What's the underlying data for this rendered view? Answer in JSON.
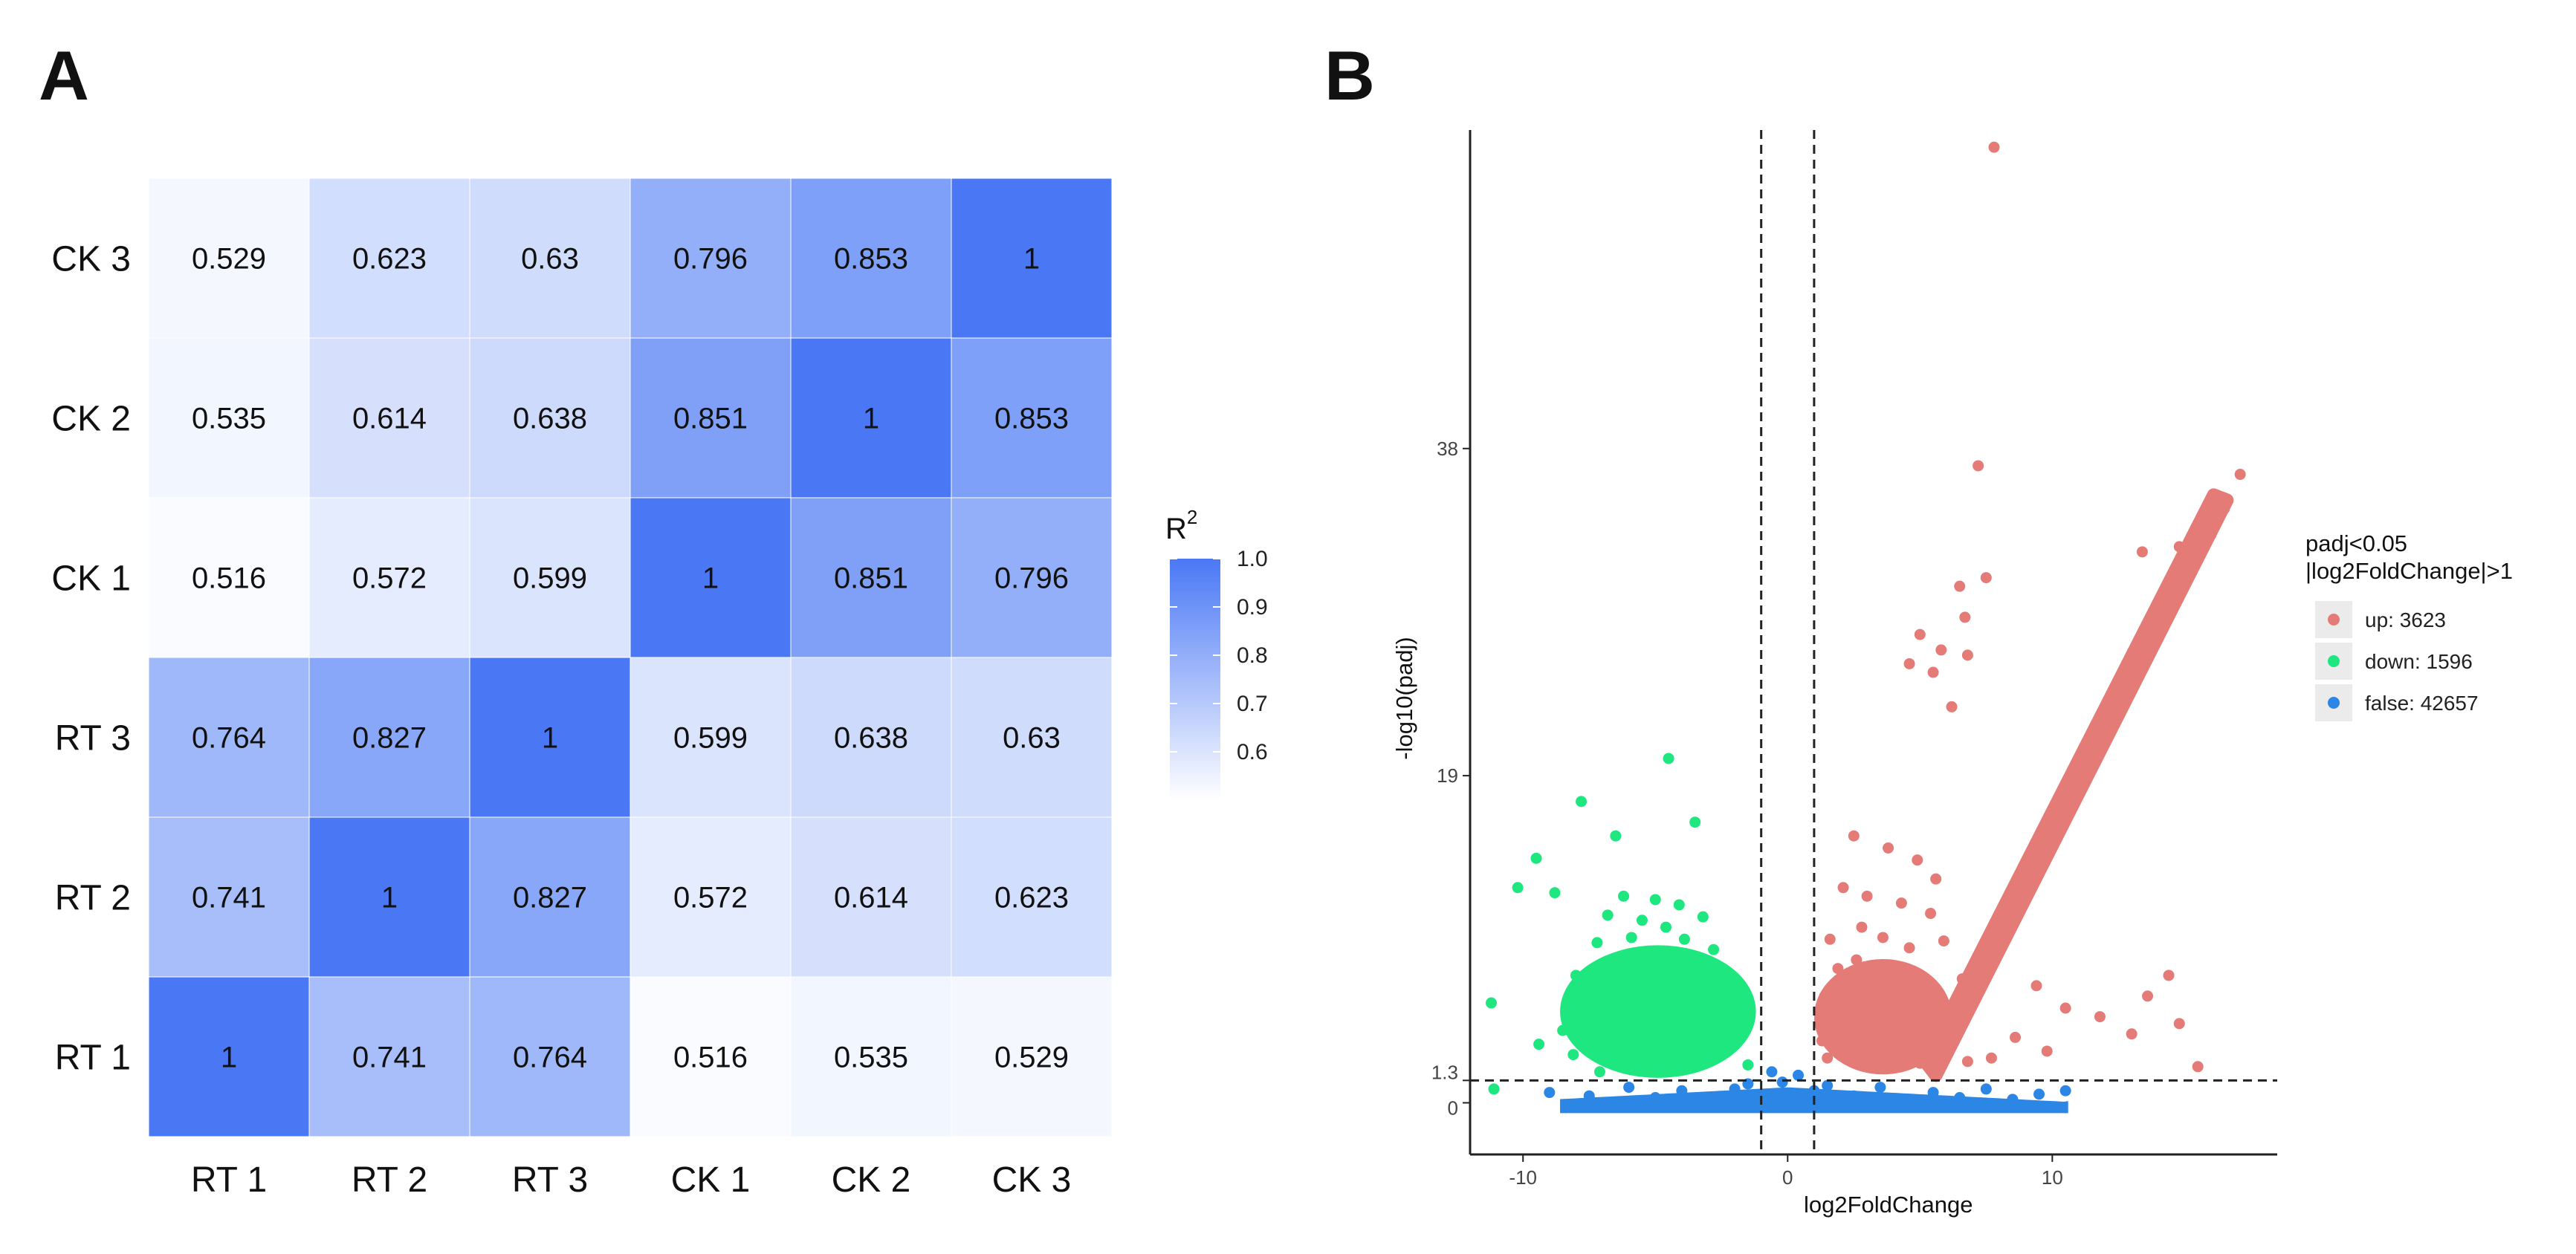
{
  "panels": {
    "a_label": "A",
    "b_label": "B"
  },
  "colors": {
    "heat_low": "#ffffff",
    "heat_high": "#4a78f5",
    "up": "#e57b77",
    "down": "#1ee77f",
    "false": "#2c86e5",
    "guide": "#222222"
  },
  "chart_data": [
    {
      "type": "heatmap",
      "title": "",
      "x_labels": [
        "RT 1",
        "RT 2",
        "RT 3",
        "CK 1",
        "CK 2",
        "CK 3"
      ],
      "y_labels_bottom_to_top": [
        "RT 1",
        "RT 2",
        "RT 3",
        "CK 1",
        "CK 2",
        "CK 3"
      ],
      "matrix": [
        [
          1,
          0.741,
          0.764,
          0.516,
          0.535,
          0.529
        ],
        [
          0.741,
          1,
          0.827,
          0.572,
          0.614,
          0.623
        ],
        [
          0.764,
          0.827,
          1,
          0.599,
          0.638,
          0.63
        ],
        [
          0.516,
          0.572,
          0.599,
          1,
          0.851,
          0.796
        ],
        [
          0.535,
          0.614,
          0.638,
          0.851,
          1,
          0.853
        ],
        [
          0.529,
          0.623,
          0.63,
          0.796,
          0.853,
          1
        ]
      ],
      "cell_labels": [
        [
          "1",
          "0.741",
          "0.764",
          "0.516",
          "0.535",
          "0.529"
        ],
        [
          "0.741",
          "1",
          "0.827",
          "0.572",
          "0.614",
          "0.623"
        ],
        [
          "0.764",
          "0.827",
          "1",
          "0.599",
          "0.638",
          "0.63"
        ],
        [
          "0.516",
          "0.572",
          "0.599",
          "1",
          "0.851",
          "0.796"
        ],
        [
          "0.535",
          "0.614",
          "0.638",
          "0.851",
          "1",
          "0.853"
        ],
        [
          "0.529",
          "0.623",
          "0.63",
          "0.796",
          "0.853",
          "1"
        ]
      ],
      "legend": {
        "title_base": "R",
        "title_sup": "2",
        "range": [
          0.5,
          1.0
        ],
        "ticks": [
          1.0,
          0.9,
          0.8,
          0.7,
          0.6
        ],
        "tick_labels": [
          "1.0",
          "0.9",
          "0.8",
          "0.7",
          "0.6"
        ],
        "position": "right"
      }
    },
    {
      "type": "scatter",
      "title": "",
      "xlabel": "log2FoldChange",
      "ylabel": "-log10(padj)",
      "xlim": [
        -12,
        18.5
      ],
      "ylim": [
        -3,
        56.5
      ],
      "x_ticks": [
        -10,
        0,
        10
      ],
      "x_tick_labels": [
        "-10",
        "0",
        "10"
      ],
      "y_ticks": [
        0,
        1.3,
        19,
        38
      ],
      "y_tick_labels": [
        "0",
        "1.3",
        "19",
        "38"
      ],
      "threshold_lines": {
        "vertical": [
          -1,
          1
        ],
        "horizontal": [
          1.3
        ]
      },
      "legend": {
        "title_lines": [
          "padj<0.05",
          "|log2FoldChange|>1"
        ],
        "position": "right",
        "entries": [
          {
            "key": "up",
            "label": "up: 3623"
          },
          {
            "key": "down",
            "label": "down: 1596"
          },
          {
            "key": "false",
            "label": "false: 42657"
          }
        ]
      },
      "series": [
        {
          "name": "up",
          "points": [
            [
              7.8,
              55.5
            ],
            [
              17.1,
              36.5
            ],
            [
              16.5,
              34.5
            ],
            [
              16.0,
              33.0
            ],
            [
              15.4,
              32.0
            ],
            [
              14.8,
              32.3
            ],
            [
              13.4,
              32.0
            ],
            [
              15.0,
              30.5
            ],
            [
              14.6,
              29.3
            ],
            [
              14.0,
              27.8
            ],
            [
              13.5,
              26.5
            ],
            [
              12.9,
              24.8
            ],
            [
              12.4,
              23.2
            ],
            [
              11.8,
              21.5
            ],
            [
              11.2,
              19.8
            ],
            [
              10.6,
              18.0
            ],
            [
              10.0,
              16.3
            ],
            [
              9.4,
              14.5
            ],
            [
              8.8,
              12.8
            ],
            [
              8.2,
              11.0
            ],
            [
              7.6,
              9.2
            ],
            [
              7.0,
              7.4
            ],
            [
              6.4,
              5.6
            ],
            [
              5.8,
              3.8
            ],
            [
              7.2,
              37.0
            ],
            [
              6.5,
              30.0
            ],
            [
              7.5,
              30.5
            ],
            [
              6.7,
              28.2
            ],
            [
              5.0,
              27.2
            ],
            [
              5.8,
              26.3
            ],
            [
              6.8,
              26.0
            ],
            [
              4.6,
              25.5
            ],
            [
              5.5,
              25.0
            ],
            [
              6.2,
              23.0
            ],
            [
              2.5,
              15.5
            ],
            [
              3.8,
              14.8
            ],
            [
              4.9,
              14.1
            ],
            [
              5.6,
              13.0
            ],
            [
              2.1,
              12.5
            ],
            [
              3.0,
              12.0
            ],
            [
              4.3,
              11.6
            ],
            [
              5.4,
              11.0
            ],
            [
              1.6,
              9.5
            ],
            [
              2.8,
              10.2
            ],
            [
              3.6,
              9.6
            ],
            [
              4.6,
              9.0
            ],
            [
              5.9,
              9.4
            ],
            [
              1.9,
              7.8
            ],
            [
              2.6,
              8.3
            ],
            [
              3.3,
              7.4
            ],
            [
              4.1,
              7.9
            ],
            [
              5.1,
              7.0
            ],
            [
              6.6,
              7.2
            ],
            [
              1.4,
              6.2
            ],
            [
              2.2,
              6.6
            ],
            [
              3.0,
              5.9
            ],
            [
              3.9,
              6.4
            ],
            [
              4.8,
              5.7
            ],
            [
              5.6,
              6.1
            ],
            [
              1.8,
              4.7
            ],
            [
              2.6,
              5.1
            ],
            [
              3.4,
              4.5
            ],
            [
              4.3,
              4.9
            ],
            [
              5.2,
              4.4
            ],
            [
              6.0,
              4.2
            ],
            [
              1.3,
              3.6
            ],
            [
              2.0,
              3.9
            ],
            [
              2.9,
              3.4
            ],
            [
              3.7,
              3.8
            ],
            [
              4.6,
              3.2
            ],
            [
              5.5,
              3.5
            ],
            [
              1.5,
              2.6
            ],
            [
              2.4,
              2.8
            ],
            [
              3.2,
              2.4
            ],
            [
              4.0,
              2.7
            ],
            [
              5.0,
              2.3
            ],
            [
              5.9,
              2.5
            ],
            [
              6.8,
              2.4
            ],
            [
              7.7,
              2.6
            ],
            [
              9.4,
              6.8
            ],
            [
              10.5,
              5.5
            ],
            [
              11.8,
              5.0
            ],
            [
              13.0,
              4.0
            ],
            [
              14.4,
              7.4
            ],
            [
              13.6,
              6.2
            ],
            [
              14.8,
              4.6
            ],
            [
              15.5,
              2.1
            ],
            [
              8.6,
              3.8
            ],
            [
              9.8,
              3.0
            ]
          ]
        },
        {
          "name": "down",
          "points": [
            [
              -4.5,
              20.0
            ],
            [
              -7.8,
              17.5
            ],
            [
              -3.5,
              16.3
            ],
            [
              -6.5,
              15.5
            ],
            [
              -9.5,
              14.2
            ],
            [
              -10.2,
              12.5
            ],
            [
              -8.8,
              12.2
            ],
            [
              -6.2,
              12.0
            ],
            [
              -5.0,
              11.8
            ],
            [
              -4.1,
              11.5
            ],
            [
              -6.8,
              10.9
            ],
            [
              -5.5,
              10.6
            ],
            [
              -3.2,
              10.8
            ],
            [
              -4.6,
              10.2
            ],
            [
              -5.9,
              9.6
            ],
            [
              -7.2,
              9.3
            ],
            [
              -3.9,
              9.5
            ],
            [
              -2.8,
              8.9
            ],
            [
              -5.2,
              8.6
            ],
            [
              -6.4,
              8.2
            ],
            [
              -4.3,
              8.0
            ],
            [
              -3.4,
              7.6
            ],
            [
              -8.0,
              7.4
            ],
            [
              -7.0,
              7.0
            ],
            [
              -5.6,
              7.1
            ],
            [
              -4.8,
              6.7
            ],
            [
              -2.6,
              6.9
            ],
            [
              -6.1,
              6.2
            ],
            [
              -3.8,
              6.0
            ],
            [
              -8.3,
              5.8
            ],
            [
              -7.4,
              5.5
            ],
            [
              -5.0,
              5.3
            ],
            [
              -2.2,
              5.6
            ],
            [
              -6.6,
              4.8
            ],
            [
              -4.2,
              4.7
            ],
            [
              -3.1,
              4.3
            ],
            [
              -8.5,
              4.2
            ],
            [
              -7.6,
              3.9
            ],
            [
              -5.4,
              3.6
            ],
            [
              -1.8,
              3.8
            ],
            [
              -6.9,
              3.2
            ],
            [
              -4.5,
              3.0
            ],
            [
              -2.9,
              2.9
            ],
            [
              -8.1,
              2.8
            ],
            [
              -6.0,
              2.5
            ],
            [
              -3.7,
              2.3
            ],
            [
              -1.5,
              2.2
            ],
            [
              -5.2,
              1.9
            ],
            [
              -7.1,
              1.8
            ],
            [
              -11.2,
              5.8
            ],
            [
              -9.4,
              3.4
            ],
            [
              -11.1,
              0.8
            ]
          ]
        },
        {
          "name": "false",
          "points": [
            [
              -9.0,
              0.6
            ],
            [
              -7.5,
              0.4
            ],
            [
              -6.0,
              0.9
            ],
            [
              -5.0,
              0.3
            ],
            [
              -4.0,
              0.7
            ],
            [
              -3.0,
              0.2
            ],
            [
              -2.0,
              0.8
            ],
            [
              -1.5,
              1.1
            ],
            [
              -1.0,
              0.5
            ],
            [
              -0.5,
              0.2
            ],
            [
              0.0,
              0.0
            ],
            [
              0.5,
              0.3
            ],
            [
              1.0,
              0.7
            ],
            [
              1.5,
              1.0
            ],
            [
              2.5,
              0.4
            ],
            [
              3.5,
              0.9
            ],
            [
              4.5,
              0.2
            ],
            [
              5.5,
              0.6
            ],
            [
              6.5,
              0.3
            ],
            [
              7.5,
              0.8
            ],
            [
              8.5,
              0.2
            ],
            [
              9.5,
              0.5
            ],
            [
              10.5,
              0.7
            ],
            [
              -0.6,
              1.8
            ],
            [
              0.4,
              1.6
            ],
            [
              -0.2,
              1.2
            ]
          ]
        }
      ]
    }
  ]
}
